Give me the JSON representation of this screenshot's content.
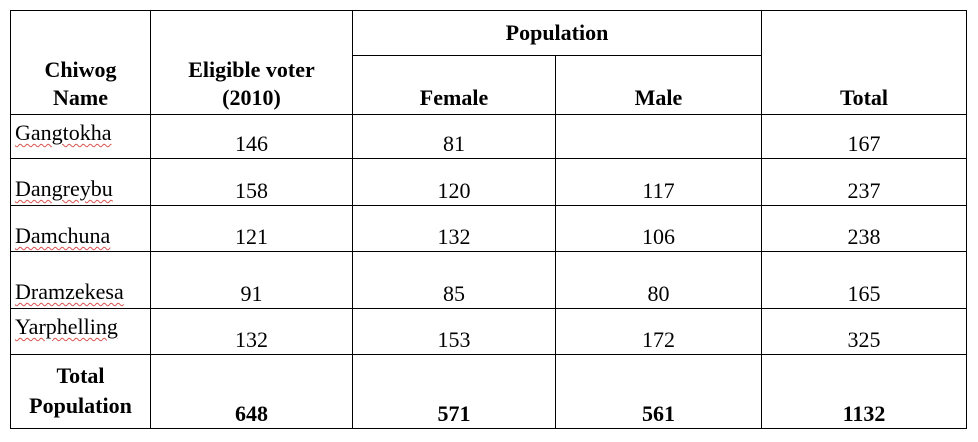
{
  "table": {
    "headers": {
      "chiwog": [
        "Chiwog",
        "Name"
      ],
      "eligible": [
        "Eligible voter",
        "(2010)"
      ],
      "population": "Population",
      "female": "Female",
      "male": "Male",
      "total": "Total"
    },
    "rows": [
      {
        "name": "Gangtokha",
        "eligible": "146",
        "female": "81",
        "male": "",
        "total": "167"
      },
      {
        "name": "Dangreybu",
        "eligible": "158",
        "female": "120",
        "male": "117",
        "total": "237"
      },
      {
        "name": "Damchuna",
        "eligible": "121",
        "female": "132",
        "male": "106",
        "total": "238"
      },
      {
        "name": "Dramzekesa",
        "eligible": "91",
        "female": "85",
        "male": "80",
        "total": "165"
      },
      {
        "name": "Yarphelling",
        "eligible": "132",
        "female": "153",
        "male": "172",
        "total": "325"
      }
    ],
    "totals": {
      "label": [
        "Total",
        "Population"
      ],
      "eligible": "648",
      "female": "571",
      "male": "561",
      "total": "1132"
    }
  }
}
